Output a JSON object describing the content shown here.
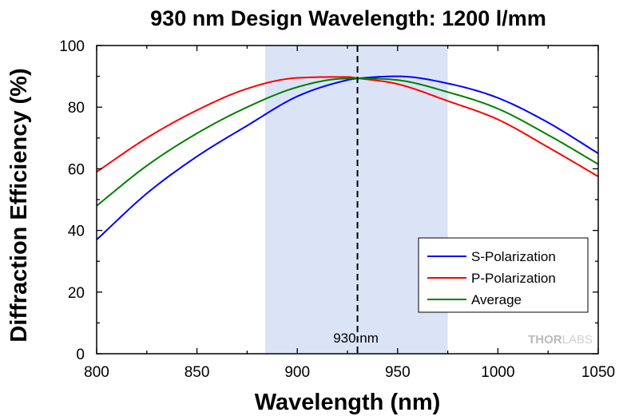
{
  "chart_data": {
    "type": "line",
    "title": "930 nm Design Wavelength: 1200 l/mm",
    "xlabel": "Wavelength (nm)",
    "ylabel": "Diffraction Efficiency (%)",
    "xlim": [
      800,
      1050
    ],
    "ylim": [
      0,
      100
    ],
    "xticks": [
      800,
      850,
      900,
      950,
      1000,
      1050
    ],
    "yticks": [
      0,
      20,
      40,
      60,
      80,
      100
    ],
    "grid": false,
    "legend_position": "bottom-right",
    "shaded_band": {
      "x_start": 884,
      "x_end": 975,
      "color": "#dae4f6"
    },
    "design_line": {
      "x": 930,
      "label": "930 nm",
      "style": "dashed"
    },
    "x": [
      800,
      825,
      850,
      875,
      900,
      925,
      930,
      950,
      975,
      1000,
      1025,
      1050
    ],
    "series": [
      {
        "name": "S-Polarization",
        "color": "#0000ff",
        "values": [
          37,
          52,
          64,
          74,
          83.5,
          88.8,
          89.3,
          90.0,
          87.7,
          83,
          75,
          65
        ]
      },
      {
        "name": "P-Polarization",
        "color": "#ff0000",
        "values": [
          59,
          70,
          79,
          86,
          89.5,
          89.8,
          89.4,
          87.5,
          82,
          76,
          67,
          57.5
        ]
      },
      {
        "name": "Average",
        "color": "#007f00",
        "values": [
          48,
          61,
          71.5,
          80,
          86.5,
          89.3,
          89.3,
          88.8,
          84.9,
          79.5,
          71,
          61.5
        ]
      }
    ]
  },
  "watermark": {
    "brand_part1": "THOR",
    "brand_part2": "LABS"
  }
}
